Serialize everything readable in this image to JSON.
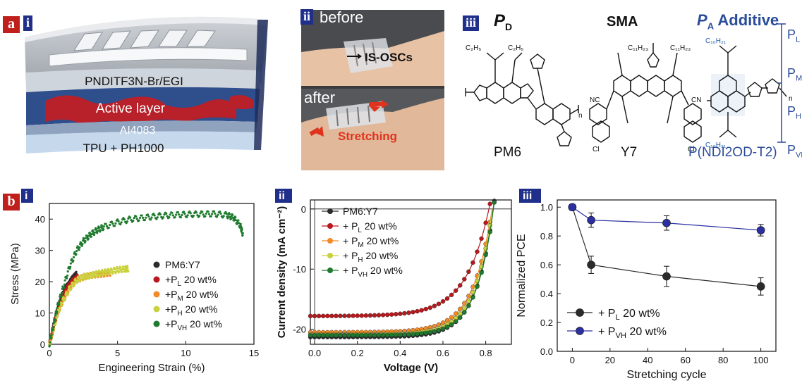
{
  "panel_a": {
    "letter": "a",
    "sub_i": {
      "roman": "i",
      "layers": [
        "PNDITF3N-Br/EGI",
        "Active layer",
        "AI4083",
        "TPU + PH1000"
      ]
    },
    "sub_ii": {
      "roman": "ii",
      "before": "before",
      "after": "after",
      "label_device": "IS-OSCs",
      "label_stretch": "Stretching"
    },
    "sub_iii": {
      "roman": "iii",
      "pd_label": "P",
      "pd_sub": "D",
      "sma_label": "SMA",
      "pa_label": "P",
      "pa_sub": "A",
      "pa_suffix": " Additive",
      "name_pm6": "PM6",
      "name_y7": "Y7",
      "name_pndi": "P(NDI2OD-T2)",
      "p_series": [
        {
          "base": "P",
          "sub": "L"
        },
        {
          "base": "P",
          "sub": "M"
        },
        {
          "base": "P",
          "sub": "H"
        },
        {
          "base": "P",
          "sub": "VH"
        }
      ]
    }
  },
  "panel_b": {
    "letter": "b",
    "colors": {
      "black": "#2b2b2b",
      "red": "#b7191e",
      "orange": "#f28a27",
      "yellow": "#c9d23c",
      "green": "#1f7a2e",
      "blue": "#2b2fa0"
    },
    "chart_data": [
      {
        "type": "scatter",
        "roman": "i",
        "xlabel": "Engineering Strain (%)",
        "ylabel": "Stress (MPa)",
        "xlim": [
          0,
          15
        ],
        "ylim": [
          0,
          45
        ],
        "xticks": [
          0,
          5,
          10,
          15
        ],
        "yticks": [
          0,
          10,
          20,
          30,
          40
        ],
        "legend": "center-right",
        "series": [
          {
            "name": "PM6:Y7",
            "sub": "",
            "suffix": "",
            "color": "#2b2b2b",
            "x": [
              0,
              0.2,
              0.4,
              0.6,
              0.8,
              1.0,
              1.2,
              1.4,
              1.6,
              1.8,
              2.0
            ],
            "y": [
              0,
              4,
              8,
              11,
              14,
              16,
              18,
              19,
              20.5,
              21.5,
              22.5
            ]
          },
          {
            "name": "+P",
            "sub": "L",
            "suffix": " 20 wt%",
            "color": "#b7191e",
            "x": [
              0,
              0.2,
              0.4,
              0.6,
              0.8,
              1.0,
              1.2,
              1.4,
              1.6,
              1.8,
              2.0,
              2.1
            ],
            "y": [
              0,
              3.5,
              7,
              10,
              13,
              15,
              17,
              18.5,
              19.5,
              20.5,
              21,
              21.5
            ]
          },
          {
            "name": "+P",
            "sub": "M",
            "suffix": " 20 wt%",
            "color": "#f28a27",
            "x": [
              0,
              0.3,
              0.6,
              1.0,
              1.5,
              2.0,
              2.5,
              3.0,
              3.5,
              4.0,
              4.5
            ],
            "y": [
              0,
              5,
              10,
              14,
              18,
              20.5,
              21.5,
              22,
              22.3,
              22.5,
              22.8
            ]
          },
          {
            "name": "+P",
            "sub": "H",
            "suffix": " 20 wt%",
            "color": "#c9d23c",
            "x": [
              0,
              0.3,
              0.6,
              1.0,
              1.5,
              2.0,
              2.5,
              3.0,
              3.5,
              4.0,
              4.5,
              5.0,
              5.5,
              5.8
            ],
            "y": [
              0,
              5,
              10,
              14,
              18,
              20.5,
              21.5,
              22,
              22.5,
              23,
              23.3,
              23.8,
              24,
              24.2
            ]
          },
          {
            "name": "+P",
            "sub": "VH",
            "suffix": " 20 wt%",
            "color": "#1f7a2e",
            "x": [
              0,
              0.3,
              0.6,
              1.0,
              1.5,
              2.0,
              2.5,
              3.0,
              3.5,
              4.0,
              5.0,
              6.0,
              7.0,
              8.0,
              9.0,
              10.0,
              11.0,
              12.0,
              13.0,
              13.5,
              14.0,
              14.2
            ],
            "y": [
              0,
              6,
              12,
              18,
              25,
              30,
              33,
              35,
              36.5,
              37.5,
              39,
              40,
              40.5,
              41,
              41.3,
              41.5,
              41.6,
              41.7,
              41.3,
              40.5,
              38,
              35
            ]
          }
        ]
      },
      {
        "type": "line",
        "roman": "ii",
        "xlabel": "Voltage (V)",
        "ylabel": "Current density (mA cm⁻²)",
        "xlim": [
          -0.02,
          0.92
        ],
        "ylim": [
          -22.5,
          1.5
        ],
        "xticks": [
          0.0,
          0.2,
          0.4,
          0.6,
          0.8
        ],
        "yticks": [
          0,
          -10,
          -20
        ],
        "legend": "top-left",
        "series": [
          {
            "name": "PM6:Y7",
            "sub": "",
            "suffix": "",
            "color": "#2b2b2b",
            "jsc": -21.3,
            "voc": 0.835,
            "n": 3.2
          },
          {
            "name": "+ P",
            "sub": "L",
            "suffix": " 20 wt%",
            "color": "#b7191e",
            "jsc": -17.8,
            "voc": 0.815,
            "n": 4.2
          },
          {
            "name": "+ P",
            "sub": "M",
            "suffix": " 20 wt%",
            "color": "#f28a27",
            "jsc": -20.5,
            "voc": 0.83,
            "n": 3.5
          },
          {
            "name": "+ P",
            "sub": "H",
            "suffix": " 20 wt%",
            "color": "#c9d23c",
            "jsc": -20.9,
            "voc": 0.832,
            "n": 3.3
          },
          {
            "name": "+ P",
            "sub": "VH",
            "suffix": " 20 wt%",
            "color": "#1f7a2e",
            "jsc": -21.0,
            "voc": 0.836,
            "n": 3.1
          }
        ]
      },
      {
        "type": "line",
        "roman": "iii",
        "xlabel": "Stretching cycle",
        "ylabel": "Normalized PCE",
        "xlim": [
          -8,
          108
        ],
        "ylim": [
          0,
          1.05
        ],
        "xticks": [
          0,
          20,
          40,
          60,
          80,
          100
        ],
        "yticks": [
          0.0,
          0.2,
          0.4,
          0.6,
          0.8,
          1.0
        ],
        "legend": "bottom-left",
        "series": [
          {
            "name": "+ P",
            "sub": "L",
            "suffix": " 20 wt%",
            "color": "#2b2b2b",
            "x": [
              0,
              10,
              50,
              100
            ],
            "y": [
              1.0,
              0.6,
              0.52,
              0.45
            ],
            "err": [
              0.02,
              0.06,
              0.07,
              0.06
            ]
          },
          {
            "name": "+ P",
            "sub": "VH",
            "suffix": " 20 wt%",
            "color": "#2b2fa0",
            "x": [
              0,
              10,
              50,
              100
            ],
            "y": [
              1.0,
              0.91,
              0.89,
              0.84
            ],
            "err": [
              0.02,
              0.05,
              0.05,
              0.04
            ]
          }
        ]
      }
    ]
  }
}
